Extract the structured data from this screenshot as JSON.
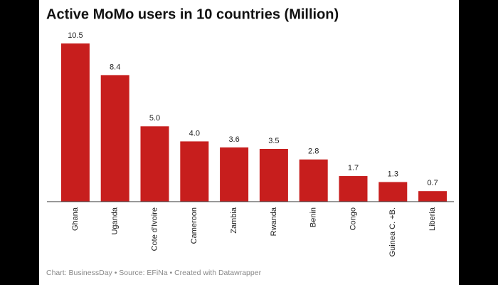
{
  "chart_data": {
    "type": "bar",
    "title": "Active MoMo users in 10 countries (Million)",
    "categories": [
      "Ghana",
      "Uganda",
      "Cote d'Ivoire",
      "Cameroon",
      "Zambia",
      "Rwanda",
      "Benin",
      "Congo",
      "Guinea C. +B.",
      "Liberia"
    ],
    "values": [
      10.5,
      8.4,
      5.0,
      4.0,
      3.6,
      3.5,
      2.8,
      1.7,
      1.3,
      0.7
    ],
    "value_labels": [
      "10.5",
      "8.4",
      "5.0",
      "4.0",
      "3.6",
      "3.5",
      "2.8",
      "1.7",
      "1.3",
      "0.7"
    ],
    "color": "#c71e1d",
    "footer": "Chart: BusinessDay • Source: EFiNa • Created with Datawrapper"
  }
}
